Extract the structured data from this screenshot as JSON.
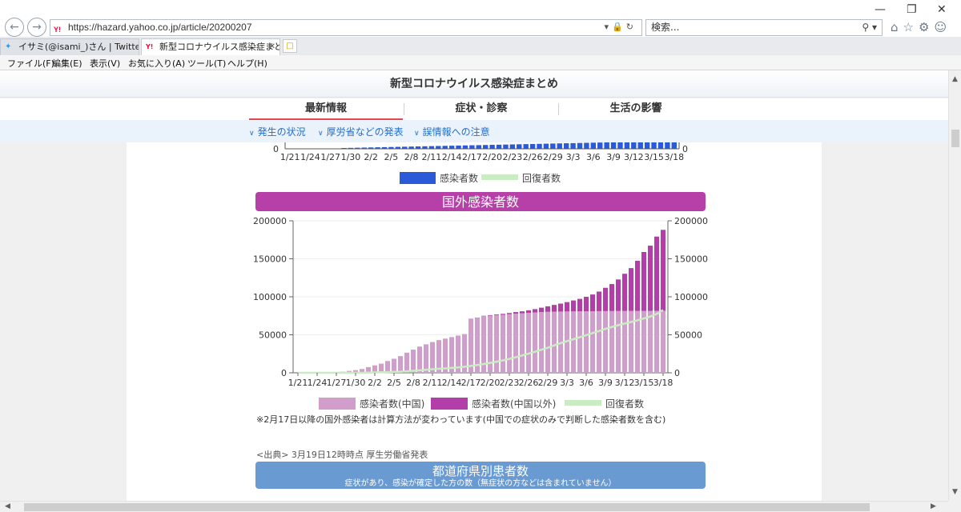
{
  "browser": {
    "url": "https://hazard.yahoo.co.jp/article/20200207",
    "search_placeholder": "検索...",
    "tabs": [
      {
        "label": "イサミ(@isami_)さん | Twitter"
      },
      {
        "label": "新型コロナウイルス感染症まと..."
      }
    ],
    "menu": [
      "ファイル(F)",
      "編集(E)",
      "表示(V)",
      "お気に入り(A)",
      "ツール(T)",
      "ヘルプ(H)"
    ]
  },
  "site": {
    "title": "新型コロナウイルス感染症まとめ",
    "tabs": [
      {
        "label": "最新情報"
      },
      {
        "label": "症状・診察"
      },
      {
        "label": "生活の影響"
      }
    ],
    "subnav": [
      {
        "label": "発生の状況"
      },
      {
        "label": "厚労省などの発表"
      },
      {
        "label": "誤情報への注意"
      }
    ],
    "note": "※2月17日以降の国外感染者は計算方法が変わっています(中国での症状のみで判断した感染者数を含む)",
    "source": "<出典> 3月19日12時時点 厚生労働省発表",
    "prefecture_title": "都道府県別患者数",
    "prefecture_subtitle": "症状があり、感染が確定した方の数（無症状の方などは含まれていません）"
  },
  "colors": {
    "domestic": "#2a5ad7",
    "china": "#d19ecb",
    "outside": "#b33ea9",
    "recovered": "#c9ecc2",
    "banner_pink": "#b640a8",
    "banner_blue": "#6a9ad2"
  },
  "chart_data": [
    {
      "type": "bar",
      "partial": true,
      "x_ticks": [
        "1/21",
        "1/24",
        "1/27",
        "1/30",
        "2/2",
        "2/5",
        "2/8",
        "2/11",
        "2/14",
        "2/17",
        "2/20",
        "2/23",
        "2/26",
        "2/29",
        "3/3",
        "3/6",
        "3/9",
        "3/12",
        "3/15",
        "3/18"
      ],
      "y_visible_tick": "0",
      "legend": [
        {
          "name": "感染者数",
          "kind": "bar"
        },
        {
          "name": "回復者数",
          "kind": "line"
        }
      ]
    },
    {
      "type": "bar",
      "title": "国外感染者数",
      "stacked": true,
      "y_ticks": [
        "0",
        "50000",
        "100000",
        "150000",
        "200000"
      ],
      "ylim": [
        0,
        200000
      ],
      "x_ticks": [
        "1/21",
        "1/24",
        "1/27",
        "1/30",
        "2/2",
        "2/5",
        "2/8",
        "2/11",
        "2/14",
        "2/17",
        "2/20",
        "2/23",
        "2/26",
        "2/29",
        "3/3",
        "3/6",
        "3/9",
        "3/12",
        "3/15",
        "3/18"
      ],
      "x_start": "1/21",
      "x_end": "3/18",
      "china_values": [
        0,
        0,
        0,
        0,
        0,
        500,
        1000,
        1500,
        2500,
        3500,
        5000,
        7500,
        9800,
        12000,
        15500,
        18500,
        22000,
        26500,
        30500,
        34500,
        37500,
        40500,
        43000,
        45000,
        47000,
        49000,
        51000,
        71000,
        72400,
        74500,
        75200,
        75800,
        76400,
        77100,
        77800,
        78300,
        78900,
        79400,
        79900,
        80200,
        80500,
        80600,
        80700,
        80800,
        80900,
        81000,
        81050,
        81100,
        81150,
        81200,
        81250,
        81300,
        81350,
        81400,
        81450,
        81500,
        81550,
        81600
      ],
      "outside_values": [
        0,
        0,
        0,
        0,
        0,
        0,
        0,
        0,
        0,
        0,
        0,
        0,
        0,
        0,
        0,
        0,
        0,
        0,
        0,
        0,
        0,
        0,
        0,
        0,
        0,
        0,
        0,
        200,
        300,
        500,
        700,
        900,
        1200,
        1600,
        2100,
        2600,
        3300,
        4400,
        5800,
        7300,
        8800,
        10500,
        12300,
        14400,
        16400,
        19000,
        22000,
        25800,
        30700,
        35600,
        41600,
        49000,
        56400,
        66000,
        77500,
        85800,
        97700,
        106500
      ],
      "recovered_values": [
        0,
        0,
        0,
        0,
        0,
        0,
        0,
        0,
        0,
        0,
        0,
        300,
        500,
        700,
        900,
        1200,
        1500,
        2000,
        2600,
        3300,
        4000,
        4700,
        5300,
        5800,
        6400,
        7100,
        7900,
        9000,
        10200,
        11600,
        13000,
        14600,
        16300,
        18200,
        20400,
        22800,
        25200,
        27700,
        30300,
        32900,
        36100,
        39000,
        41700,
        44200,
        46800,
        49600,
        52300,
        55000,
        57800,
        60200,
        62600,
        64800,
        66800,
        69000,
        71500,
        74000,
        77500,
        82500
      ],
      "legend": [
        {
          "name": "感染者数(中国)",
          "kind": "bar"
        },
        {
          "name": "感染者数(中国以外)",
          "kind": "bar"
        },
        {
          "name": "回復者数",
          "kind": "line"
        }
      ]
    }
  ]
}
